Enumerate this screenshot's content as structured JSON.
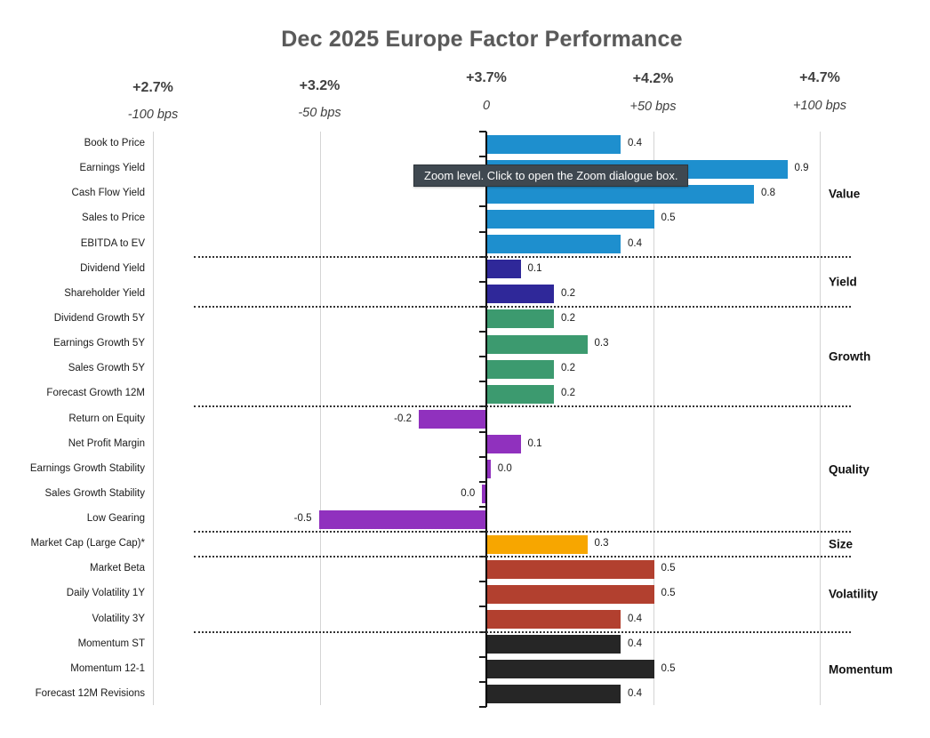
{
  "title": "Dec 2025 Europe Factor Performance",
  "tooltip": "Zoom level. Click to open the Zoom dialogue box.",
  "colors": {
    "value": "#1e8fce",
    "yield": "#2f2899",
    "growth": "#3c9a6f",
    "quality": "#9031be",
    "size": "#f7a600",
    "volatility": "#b2402f",
    "momentum": "#262626",
    "title_text": "#595959",
    "axis_text": "#404040",
    "tooltip_bg": "#3f4850"
  },
  "chart_data": {
    "type": "bar",
    "orientation": "horizontal",
    "title": "Dec 2025 Europe Factor Performance",
    "x_axis": {
      "unit": "bps",
      "ticks_bps": [
        -100,
        -50,
        0,
        50,
        100
      ],
      "labels_pct": [
        "+2.7%",
        "+3.2%",
        "+3.7%",
        "+4.2%",
        "+4.7%"
      ],
      "labels_bps": [
        "-100 bps",
        "-50 bps",
        "0",
        "+50 bps",
        "+100 bps"
      ],
      "range_bps": [
        -100,
        100
      ]
    },
    "value_label_unit": "%",
    "groups": [
      {
        "name": "Value",
        "color": "#1e8fce",
        "bars": [
          {
            "label": "Book to Price",
            "value": 0.4,
            "display": "0.4"
          },
          {
            "label": "Earnings Yield",
            "value": 0.9,
            "display": "0.9"
          },
          {
            "label": "Cash Flow Yield",
            "value": 0.8,
            "display": "0.8"
          },
          {
            "label": "Sales to Price",
            "value": 0.5,
            "display": "0.5"
          },
          {
            "label": "EBITDA to EV",
            "value": 0.4,
            "display": "0.4"
          }
        ]
      },
      {
        "name": "Yield",
        "color": "#2f2899",
        "bars": [
          {
            "label": "Dividend Yield",
            "value": 0.1,
            "display": "0.1"
          },
          {
            "label": "Shareholder Yield",
            "value": 0.2,
            "display": "0.2"
          }
        ]
      },
      {
        "name": "Growth",
        "color": "#3c9a6f",
        "bars": [
          {
            "label": "Dividend Growth 5Y",
            "value": 0.2,
            "display": "0.2"
          },
          {
            "label": "Earnings Growth 5Y",
            "value": 0.3,
            "display": "0.3"
          },
          {
            "label": "Sales Growth 5Y",
            "value": 0.2,
            "display": "0.2"
          },
          {
            "label": "Forecast Growth 12M",
            "value": 0.2,
            "display": "0.2"
          }
        ]
      },
      {
        "name": "Quality",
        "color": "#9031be",
        "bars": [
          {
            "label": "Return on Equity",
            "value": -0.2,
            "display": "-0.2"
          },
          {
            "label": "Net Profit Margin",
            "value": 0.1,
            "display": "0.1"
          },
          {
            "label": "Earnings Growth Stability",
            "value": 0.01,
            "display": "0.0"
          },
          {
            "label": "Sales Growth Stability",
            "value": -0.01,
            "display": "0.0"
          },
          {
            "label": "Low Gearing",
            "value": -0.5,
            "display": "-0.5"
          }
        ]
      },
      {
        "name": "Size",
        "color": "#f7a600",
        "bars": [
          {
            "label": "Market Cap (Large Cap)*",
            "value": 0.3,
            "display": "0.3"
          }
        ]
      },
      {
        "name": "Volatility",
        "color": "#b2402f",
        "bars": [
          {
            "label": "Market Beta",
            "value": 0.5,
            "display": "0.5"
          },
          {
            "label": "Daily Volatility 1Y",
            "value": 0.5,
            "display": "0.5"
          },
          {
            "label": "Volatility 3Y",
            "value": 0.4,
            "display": "0.4"
          }
        ]
      },
      {
        "name": "Momentum",
        "color": "#262626",
        "bars": [
          {
            "label": "Momentum ST",
            "value": 0.4,
            "display": "0.4"
          },
          {
            "label": "Momentum 12-1",
            "value": 0.5,
            "display": "0.5"
          },
          {
            "label": "Forecast 12M Revisions",
            "value": 0.4,
            "display": "0.4"
          }
        ]
      }
    ]
  }
}
